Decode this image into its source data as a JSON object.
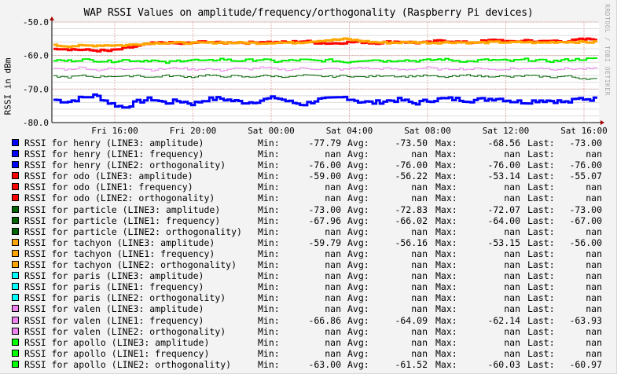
{
  "chart_data": {
    "type": "line",
    "title": "WAP RSSI Values on amplitude/frequency/orthogonality (Raspberry Pi devices)",
    "watermark": "RRDTOOL / TOBI OETIKER",
    "ylabel": "RSSI in dBm",
    "ylim": [
      -80,
      -50
    ],
    "yticks": [
      "-50.0",
      "-60.0",
      "-70.0",
      "-80.0"
    ],
    "ytick_values": [
      -50,
      -60,
      -70,
      -80
    ],
    "xticks": [
      "Fri 16:00",
      "Fri 20:00",
      "Sat 00:00",
      "Sat 04:00",
      "Sat 08:00",
      "Sat 12:00",
      "Sat 16:00"
    ],
    "grid": true,
    "series": [
      {
        "name": "henry (LINE3: amplitude)",
        "color": "#0000ff",
        "width": 3,
        "noise": 1.2,
        "values": [
          -73.2,
          -73.8,
          -72.6,
          -71.9,
          -74.2,
          -75.5,
          -73.8,
          -72.9,
          -74.1,
          -73.5,
          -74.4,
          -73.1,
          -72.8,
          -73.6,
          -74.0,
          -73.3,
          -72.5,
          -73.9,
          -74.6,
          -73.2,
          -73.0,
          -72.4,
          -73.7,
          -74.1,
          -73.5,
          -73.2,
          -74.3,
          -73.4,
          -72.9,
          -73.0,
          -73.4,
          -73.1,
          -72.7,
          -73.6,
          -73.9,
          -73.3,
          -73.5,
          -74.0,
          -72.8,
          -73.0
        ]
      },
      {
        "name": "odo (LINE3: amplitude)",
        "color": "#ff0000",
        "width": 3,
        "noise": 0.6,
        "values": [
          -57.8,
          -58.1,
          -58.3,
          -58.5,
          -58.6,
          -57.9,
          -57.2,
          -56.4,
          -56.1,
          -56.5,
          -56.2,
          -55.8,
          -56.3,
          -56.0,
          -56.2,
          -55.9,
          -56.1,
          -56.0,
          -55.7,
          -56.2,
          -56.4,
          -56.1,
          -55.9,
          -56.3,
          -56.0,
          -55.8,
          -56.2,
          -56.1,
          -55.5,
          -55.9,
          -56.2,
          -55.7,
          -55.3,
          -56.0,
          -55.4,
          -55.9,
          -55.6,
          -55.8,
          -55.2,
          -55.1
        ]
      },
      {
        "name": "tachyon (LINE3: amplitude)",
        "color": "#ffa500",
        "width": 3,
        "noise": 0.5,
        "values": [
          -57.0,
          -57.2,
          -57.1,
          -57.0,
          -56.9,
          -57.0,
          -56.6,
          -56.3,
          -56.2,
          -56.2,
          -56.3,
          -56.2,
          -56.1,
          -56.2,
          -56.2,
          -56.3,
          -56.1,
          -56.2,
          -56.0,
          -55.6,
          -55.4,
          -55.1,
          -55.6,
          -56.0,
          -56.2,
          -56.1,
          -56.0,
          -56.2,
          -56.1,
          -56.0,
          -56.2,
          -56.1,
          -56.0,
          -56.1,
          -56.0,
          -56.2,
          -56.0,
          -55.9,
          -56.0,
          -56.0
        ]
      },
      {
        "name": "apollo (LINE2: orthogonality)",
        "color": "#00ee00",
        "width": 2,
        "noise": 0.7,
        "values": [
          -61.4,
          -61.6,
          -61.2,
          -61.5,
          -61.8,
          -61.3,
          -61.6,
          -61.4,
          -62.2,
          -61.5,
          -61.3,
          -61.7,
          -61.0,
          -61.6,
          -61.4,
          -61.2,
          -61.8,
          -61.5,
          -61.3,
          -61.6,
          -61.4,
          -62.0,
          -61.5,
          -61.2,
          -61.7,
          -61.3,
          -61.6,
          -61.4,
          -61.1,
          -61.5,
          -61.8,
          -61.3,
          -61.4,
          -61.6,
          -61.2,
          -61.5,
          -61.7,
          -61.3,
          -61.1,
          -61.0
        ]
      },
      {
        "name": "valen (LINE1: frequency)",
        "color": "#ee82ee",
        "width": 1,
        "noise": 0.6,
        "values": [
          -63.8,
          -64.2,
          -63.5,
          -64.4,
          -63.9,
          -64.1,
          -63.6,
          -64.3,
          -64.0,
          -63.7,
          -64.2,
          -63.9,
          -64.5,
          -63.8,
          -64.1,
          -63.6,
          -64.0,
          -64.3,
          -63.7,
          -64.1,
          -63.9,
          -64.2,
          -63.5,
          -64.0,
          -63.8,
          -64.3,
          -64.0,
          -63.6,
          -64.2,
          -63.9,
          -64.1,
          -63.7,
          -64.4,
          -63.8,
          -64.0,
          -63.6,
          -64.1,
          -63.9,
          -64.0,
          -63.9
        ]
      },
      {
        "name": "particle (LINE1: frequency)",
        "color": "#006400",
        "width": 1,
        "noise": 0.5,
        "values": [
          -66.2,
          -66.5,
          -66.0,
          -66.4,
          -66.1,
          -66.3,
          -65.9,
          -66.6,
          -66.0,
          -66.2,
          -66.4,
          -65.8,
          -66.3,
          -66.1,
          -66.5,
          -66.0,
          -66.2,
          -66.4,
          -65.9,
          -66.1,
          -66.3,
          -66.0,
          -66.4,
          -66.2,
          -65.9,
          -66.3,
          -66.1,
          -66.0,
          -66.5,
          -66.2,
          -65.8,
          -66.3,
          -66.1,
          -66.4,
          -66.0,
          -66.2,
          -66.5,
          -66.1,
          -66.8,
          -67.0
        ]
      }
    ],
    "legend": [
      {
        "color": "#0000ff",
        "label": "RSSI for henry (LINE3: amplitude)",
        "min": "-77.79",
        "avg": "-73.50",
        "max": "-68.56",
        "last": "-73.00"
      },
      {
        "color": "#0000ff",
        "label": "RSSI for henry (LINE1: frequency)",
        "min": "nan",
        "avg": "nan",
        "max": "nan",
        "last": "nan"
      },
      {
        "color": "#0000ff",
        "label": "RSSI for henry (LINE2: orthogonality)",
        "min": "-76.00",
        "avg": "-76.00",
        "max": "-76.00",
        "last": "-76.00"
      },
      {
        "color": "#ff0000",
        "label": "RSSI for odo (LINE3: amplitude)",
        "min": "-59.00",
        "avg": "-56.22",
        "max": "-53.14",
        "last": "-55.07"
      },
      {
        "color": "#ff0000",
        "label": "RSSI for odo (LINE1: frequency)",
        "min": "nan",
        "avg": "nan",
        "max": "nan",
        "last": "nan"
      },
      {
        "color": "#ff0000",
        "label": "RSSI for odo (LINE2: orthogonality)",
        "min": "nan",
        "avg": "nan",
        "max": "nan",
        "last": "nan"
      },
      {
        "color": "#006400",
        "label": "RSSI for particle (LINE3: amplitude)",
        "min": "-73.00",
        "avg": "-72.83",
        "max": "-72.07",
        "last": "-73.00"
      },
      {
        "color": "#006400",
        "label": "RSSI for particle (LINE1: frequency)",
        "min": "-67.96",
        "avg": "-66.02",
        "max": "-64.00",
        "last": "-67.00"
      },
      {
        "color": "#006400",
        "label": "RSSI for particle (LINE2: orthogonality)",
        "min": "nan",
        "avg": "nan",
        "max": "nan",
        "last": "nan"
      },
      {
        "color": "#ffa500",
        "label": "RSSI for tachyon (LINE3: amplitude)",
        "min": "-59.79",
        "avg": "-56.16",
        "max": "-53.15",
        "last": "-56.00"
      },
      {
        "color": "#ffa500",
        "label": "RSSI for tachyon (LINE1: frequency)",
        "min": "nan",
        "avg": "nan",
        "max": "nan",
        "last": "nan"
      },
      {
        "color": "#ffa500",
        "label": "RSSI for tachyon (LINE2: orthogonality)",
        "min": "nan",
        "avg": "nan",
        "max": "nan",
        "last": "nan"
      },
      {
        "color": "#00ffff",
        "label": "RSSI for paris (LINE3: amplitude)",
        "min": "nan",
        "avg": "nan",
        "max": "nan",
        "last": "nan"
      },
      {
        "color": "#00ffff",
        "label": "RSSI for paris (LINE1: frequency)",
        "min": "nan",
        "avg": "nan",
        "max": "nan",
        "last": "nan"
      },
      {
        "color": "#00ffff",
        "label": "RSSI for paris (LINE2: orthogonality)",
        "min": "nan",
        "avg": "nan",
        "max": "nan",
        "last": "nan"
      },
      {
        "color": "#ee82ee",
        "label": "RSSI for valen (LINE3: amplitude)",
        "min": "nan",
        "avg": "nan",
        "max": "nan",
        "last": "nan"
      },
      {
        "color": "#ee82ee",
        "label": "RSSI for valen (LINE1: frequency)",
        "min": "-66.86",
        "avg": "-64.09",
        "max": "-62.14",
        "last": "-63.93"
      },
      {
        "color": "#ee82ee",
        "label": "RSSI for valen (LINE2: orthogonality)",
        "min": "nan",
        "avg": "nan",
        "max": "nan",
        "last": "nan"
      },
      {
        "color": "#00ff00",
        "label": "RSSI for apollo (LINE3: amplitude)",
        "min": "nan",
        "avg": "nan",
        "max": "nan",
        "last": "nan"
      },
      {
        "color": "#00ff00",
        "label": "RSSI for apollo (LINE1: frequency)",
        "min": "nan",
        "avg": "nan",
        "max": "nan",
        "last": "nan"
      },
      {
        "color": "#00ff00",
        "label": "RSSI for apollo (LINE2: orthogonality)",
        "min": "-63.00",
        "avg": "-61.52",
        "max": "-60.03",
        "last": "-60.97"
      }
    ],
    "legend_keys": {
      "min": "Min:",
      "avg": "Avg:",
      "max": "Max:",
      "last": "Last:"
    }
  }
}
